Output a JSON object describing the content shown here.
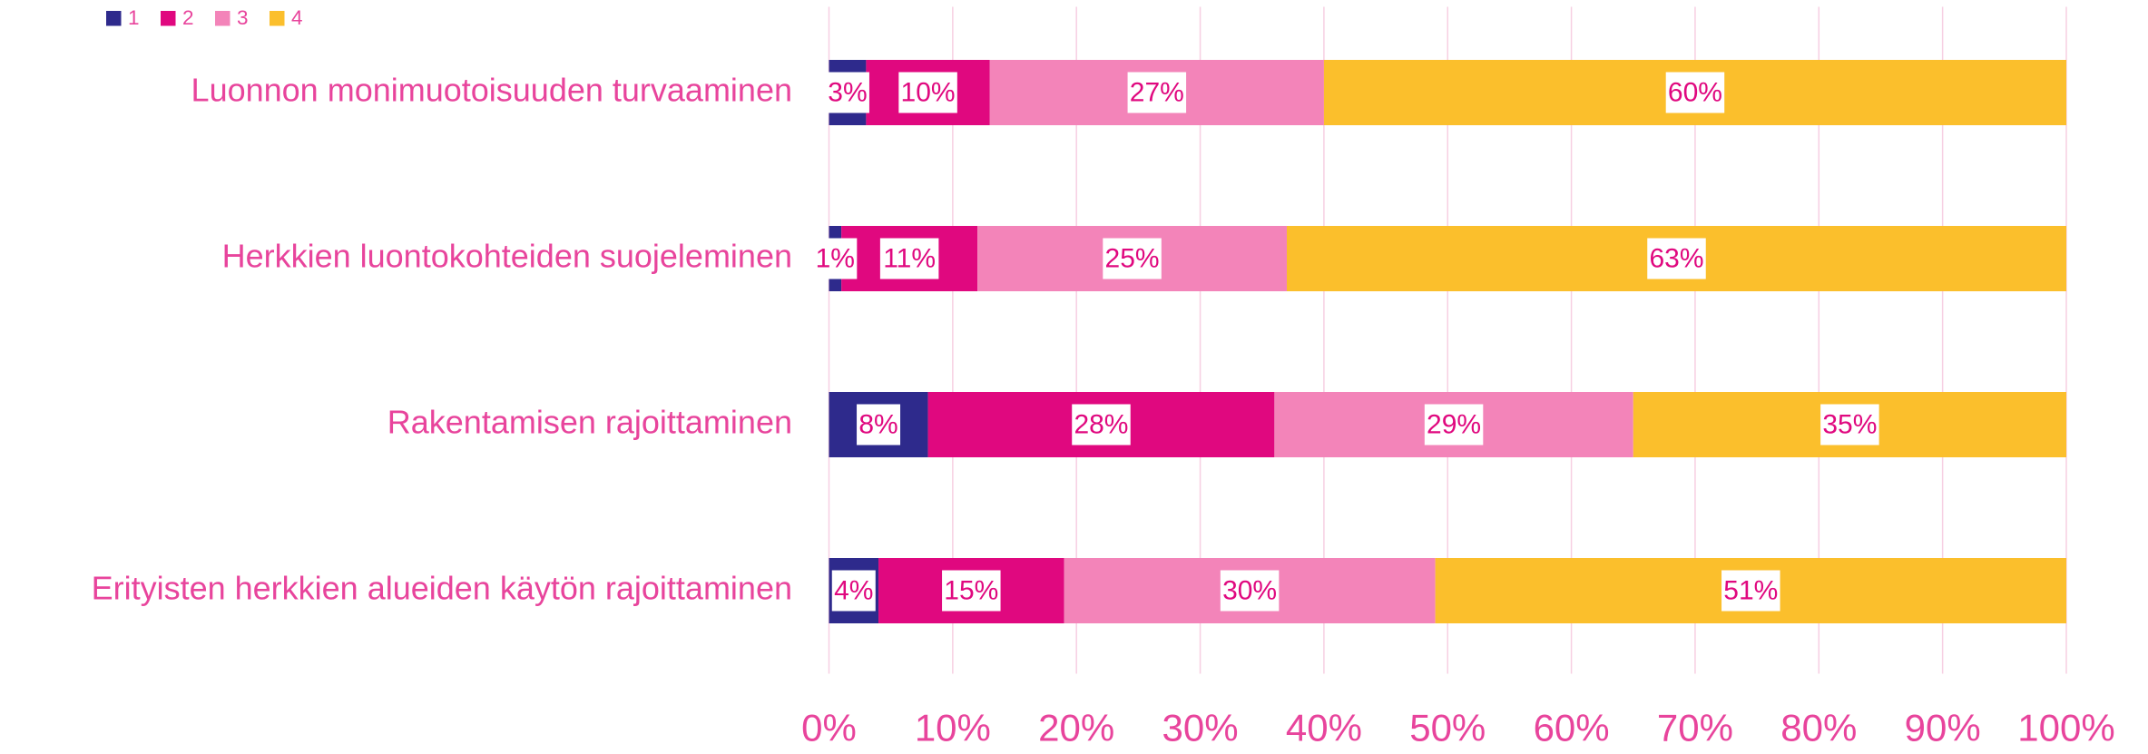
{
  "chart_data": {
    "type": "stacked_barh",
    "categories": [
      "Luonnon monimuotoisuuden turvaaminen",
      "Herkkien luontokohteiden suojeleminen",
      "Rakentamisen rajoittaminen",
      "Erityisten herkkien alueiden käytön rajoittaminen"
    ],
    "series": [
      {
        "name": "1",
        "color": "#2e2a8c",
        "values": [
          3,
          1,
          8,
          4
        ],
        "value_labels": [
          "3%",
          "1%",
          "8%",
          "4%"
        ]
      },
      {
        "name": "2",
        "color": "#e0087f",
        "values": [
          10,
          11,
          28,
          15
        ],
        "value_labels": [
          "10%",
          "11%",
          "28%",
          "15%"
        ]
      },
      {
        "name": "3",
        "color": "#f384b9",
        "values": [
          27,
          25,
          29,
          30
        ],
        "value_labels": [
          "27%",
          "25%",
          "29%",
          "30%"
        ]
      },
      {
        "name": "4",
        "color": "#fbbf2c",
        "values": [
          60,
          63,
          35,
          51
        ],
        "value_labels": [
          "60%",
          "63%",
          "35%",
          "51%"
        ]
      }
    ],
    "xlim": [
      0,
      100
    ],
    "xticks": [
      {
        "value": 0,
        "label": "0%"
      },
      {
        "value": 10,
        "label": "10%"
      },
      {
        "value": 20,
        "label": "20%"
      },
      {
        "value": 30,
        "label": "30%"
      },
      {
        "value": 40,
        "label": "40%"
      },
      {
        "value": 50,
        "label": "50%"
      },
      {
        "value": 60,
        "label": "60%"
      },
      {
        "value": 70,
        "label": "70%"
      },
      {
        "value": 80,
        "label": "80%"
      },
      {
        "value": 90,
        "label": "90%"
      },
      {
        "value": 100,
        "label": "100%"
      }
    ],
    "grid": true,
    "legend": "top-left"
  }
}
